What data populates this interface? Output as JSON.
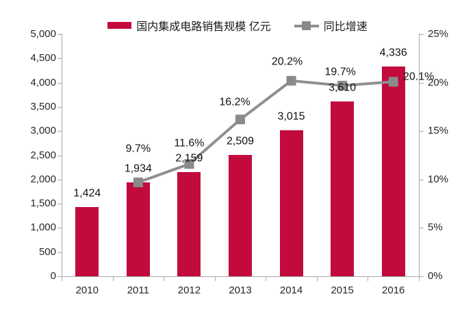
{
  "chart_data": {
    "type": "combo-bar-line",
    "title": "",
    "categories": [
      "2010",
      "2011",
      "2012",
      "2013",
      "2014",
      "2015",
      "2016"
    ],
    "series": [
      {
        "name": "国内集成电路销售规模 亿元",
        "type": "bar",
        "axis": "left",
        "color": "#C20B3C",
        "values": [
          1424,
          1934,
          2159,
          2509,
          3015,
          3610,
          4336
        ],
        "labels": [
          "1,424",
          "1,934",
          "2,159",
          "2,509",
          "3,015",
          "3,610",
          "4,336"
        ]
      },
      {
        "name": "同比增速",
        "type": "line",
        "axis": "right",
        "color": "#8F8F8F",
        "marker": "square",
        "values": [
          null,
          9.7,
          11.6,
          16.2,
          20.2,
          19.7,
          20.1
        ],
        "labels": [
          null,
          "9.7%",
          "11.6%",
          "16.2%",
          "20.2%",
          "19.7%",
          "20.1%"
        ]
      }
    ],
    "left_axis": {
      "min": 0,
      "max": 5000,
      "step": 500,
      "tick_labels": [
        "0",
        "500",
        "1,000",
        "1,500",
        "2,000",
        "2,500",
        "3,000",
        "3,500",
        "4,000",
        "4,500",
        "5,000"
      ]
    },
    "right_axis": {
      "min": 0,
      "max": 25,
      "step": 5,
      "tick_labels": [
        "0%",
        "5%",
        "10%",
        "15%",
        "20%",
        "25%"
      ]
    },
    "legend_position": "top",
    "grid": false
  }
}
